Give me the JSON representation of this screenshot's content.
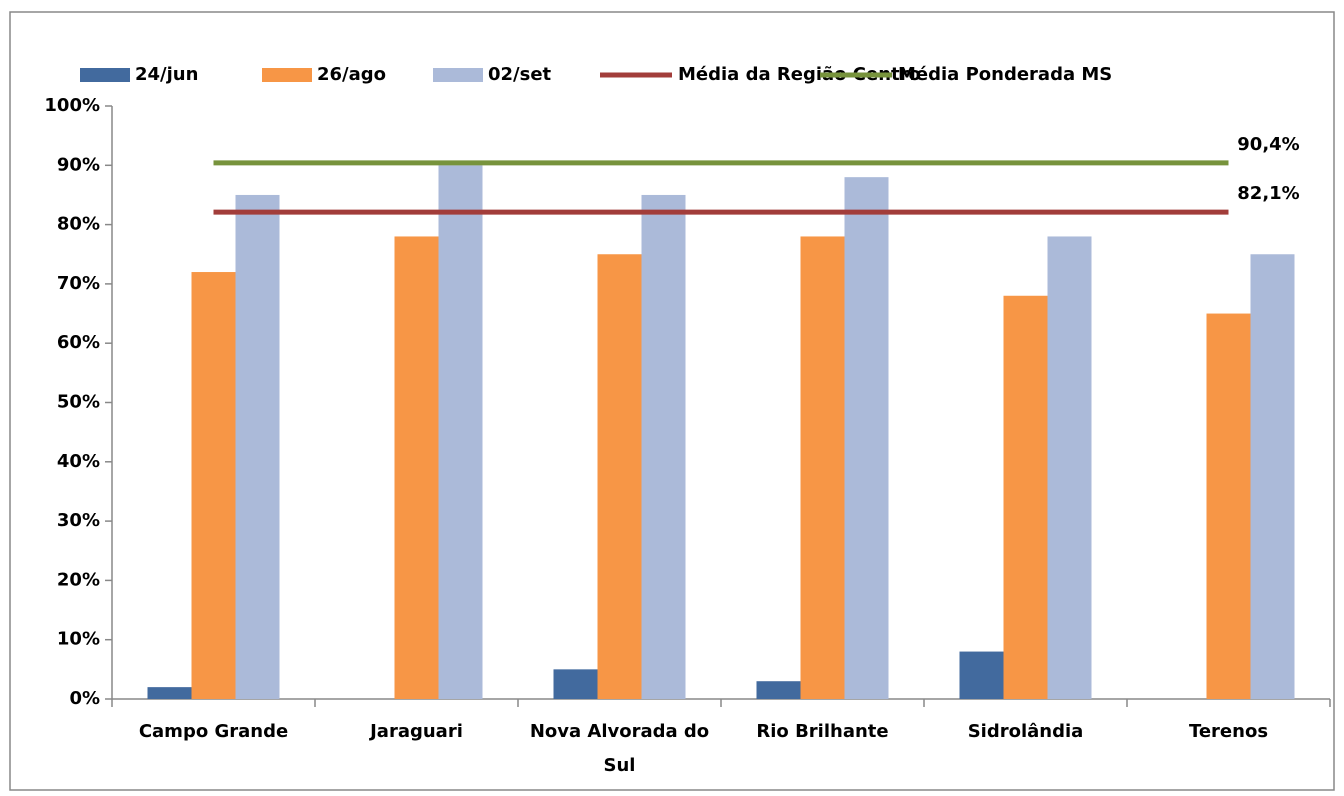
{
  "chart_data": {
    "type": "bar",
    "categories": [
      "Campo Grande",
      "Jaraguari",
      "Nova Alvorada do Sul",
      "Rio Brilhante",
      "Sidrolândia",
      "Terenos"
    ],
    "series": [
      {
        "name": "24/jun",
        "type": "bar",
        "color": "#426a9e",
        "values": [
          2,
          0,
          5,
          3,
          8,
          0
        ]
      },
      {
        "name": "26/ago",
        "type": "bar",
        "color": "#f79646",
        "values": [
          72,
          78,
          75,
          78,
          68,
          65
        ]
      },
      {
        "name": "02/set",
        "type": "bar",
        "color": "#abbad9",
        "values": [
          85,
          90,
          85,
          88,
          78,
          75
        ]
      },
      {
        "name": "Média da Região Centro",
        "type": "line",
        "color": "#a23d3a",
        "values": [
          82.1,
          82.1,
          82.1,
          82.1,
          82.1,
          82.1
        ],
        "value_labels": [
          null,
          null,
          null,
          null,
          null,
          "82,1%"
        ]
      },
      {
        "name": "Média Ponderada MS",
        "type": "line",
        "color": "#77933c",
        "values": [
          90.4,
          90.4,
          90.4,
          90.4,
          90.4,
          90.4
        ],
        "value_labels": [
          null,
          null,
          null,
          null,
          null,
          "90,4%"
        ]
      }
    ],
    "ylim": [
      0,
      100
    ],
    "yticks": [
      {
        "value": 0,
        "label": "0%"
      },
      {
        "value": 10,
        "label": "10%"
      },
      {
        "value": 20,
        "label": "20%"
      },
      {
        "value": 30,
        "label": "30%"
      },
      {
        "value": 40,
        "label": "40%"
      },
      {
        "value": 50,
        "label": "50%"
      },
      {
        "value": 60,
        "label": "60%"
      },
      {
        "value": 70,
        "label": "70%"
      },
      {
        "value": 80,
        "label": "80%"
      },
      {
        "value": 90,
        "label": "90%"
      },
      {
        "value": 100,
        "label": "100%"
      }
    ],
    "grid": false
  }
}
